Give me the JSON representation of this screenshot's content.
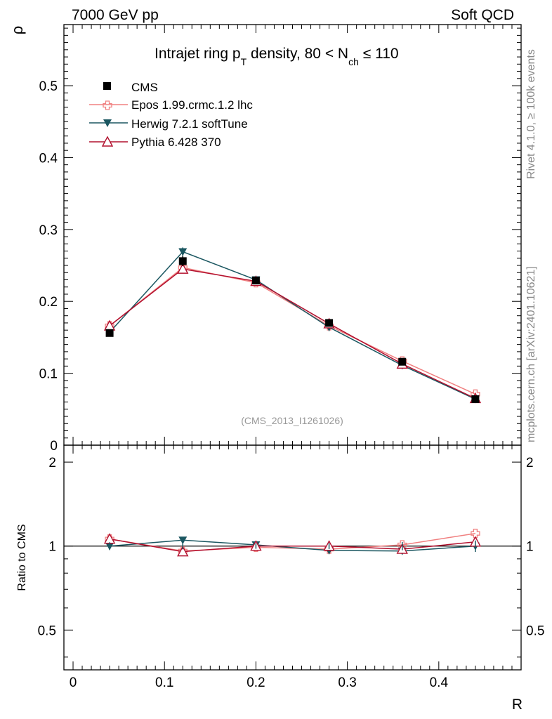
{
  "header": {
    "left": "7000 GeV pp",
    "right": "Soft QCD"
  },
  "side": {
    "rivet": "Rivet 4.1.0, ≥ 100k events",
    "mcplots": "mcplots.cern.ch [arXiv:2401.10621]"
  },
  "colors": {
    "cms": "#000000",
    "epos": "#f08080",
    "herwig": "#1b5761",
    "pythia": "#b2102e"
  },
  "chart_data": [
    {
      "type": "line",
      "title": "Intrajet ring p_T density, 80 < N_ch ≤ 110",
      "title_parts": {
        "pre": "Intrajet ring p",
        "sub1": "T",
        "mid": " density, 80 < N",
        "sub2": "ch",
        "post": " ≤ 110"
      },
      "ylabel": "ρ",
      "xlabel": "",
      "watermark": "(CMS_2013_I1261026)",
      "xlim": [
        -0.01,
        0.49
      ],
      "ylim": [
        0,
        0.585
      ],
      "x": [
        0.04,
        0.12,
        0.2,
        0.28,
        0.36,
        0.44
      ],
      "yticks": [
        0,
        0.1,
        0.2,
        0.3,
        0.4,
        0.5
      ],
      "ytick_labels": [
        "0",
        "0.1",
        "0.2",
        "0.3",
        "0.4",
        "0.5"
      ],
      "series": [
        {
          "name": "CMS",
          "marker": "square",
          "values": [
            0.156,
            0.256,
            0.229,
            0.17,
            0.116,
            0.064
          ],
          "errors": [
            0.005,
            0.007,
            0.005,
            0.004,
            0.004,
            0.003
          ]
        },
        {
          "name": "Epos 1.99.crmc.1.2 lhc",
          "marker": "cross",
          "values": [
            0.166,
            0.247,
            0.226,
            0.166,
            0.117,
            0.071
          ],
          "errors": [
            0.002,
            0.002,
            0.002,
            0.002,
            0.002,
            0.002
          ]
        },
        {
          "name": "Herwig 7.2.1 softTune",
          "marker": "triangle-down",
          "values": [
            0.157,
            0.269,
            0.23,
            0.164,
            0.111,
            0.064
          ],
          "errors": [
            0.003,
            0.006,
            0.003,
            0.002,
            0.002,
            0.002
          ]
        },
        {
          "name": "Pythia 6.428 370",
          "marker": "triangle-up",
          "values": [
            0.166,
            0.245,
            0.228,
            0.169,
            0.113,
            0.065
          ],
          "errors": [
            0.002,
            0.003,
            0.002,
            0.002,
            0.002,
            0.002
          ]
        }
      ]
    },
    {
      "type": "line",
      "title": "",
      "ylabel": "Ratio to CMS",
      "xlabel": "R",
      "xlim": [
        -0.01,
        0.49
      ],
      "ylim": [
        0.36,
        2.3
      ],
      "yscale": "log",
      "x": [
        0.04,
        0.12,
        0.2,
        0.28,
        0.36,
        0.44
      ],
      "xticks": [
        0,
        0.1,
        0.2,
        0.3,
        0.4
      ],
      "xtick_labels": [
        "0",
        "0.1",
        "0.2",
        "0.3",
        "0.4"
      ],
      "yticks": [
        0.5,
        1,
        2
      ],
      "ytick_labels": [
        "0.5",
        "1",
        "2"
      ],
      "cms_band": [
        0.032,
        0.027,
        0.022,
        0.024,
        0.034,
        0.047
      ],
      "series": [
        {
          "name": "Epos 1.99.crmc.1.2 lhc",
          "values": [
            1.06,
            0.96,
            0.99,
            0.975,
            1.01,
            1.11
          ]
        },
        {
          "name": "Herwig 7.2.1 softTune",
          "values": [
            1.0,
            1.05,
            1.01,
            0.965,
            0.96,
            1.0
          ]
        },
        {
          "name": "Pythia 6.428 370",
          "values": [
            1.06,
            0.955,
            1.0,
            1.0,
            0.975,
            1.035
          ]
        }
      ]
    }
  ]
}
